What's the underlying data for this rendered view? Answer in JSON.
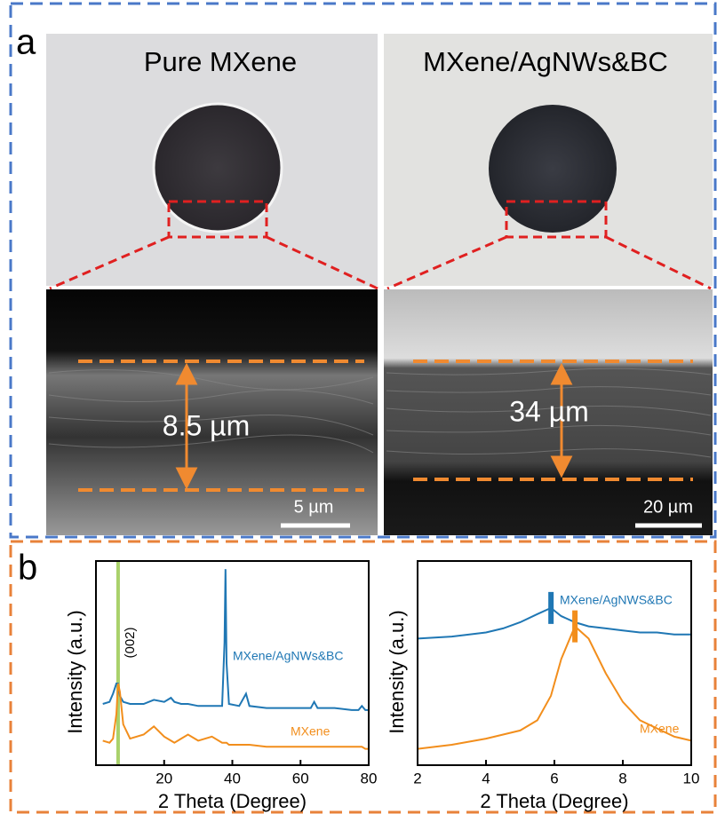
{
  "panel_a": {
    "label": "a",
    "left_title": "Pure MXene",
    "right_title": "MXene/AgNWs&BC",
    "left_thickness": "8.5 µm",
    "right_thickness": "34 µm",
    "left_scale": "5 µm",
    "right_scale": "20 µm"
  },
  "panel_b": {
    "label": "b"
  },
  "chart_data": [
    {
      "type": "line",
      "xlabel": "2 Theta (Degree)",
      "ylabel": "Intensity (a.u.)",
      "annotation": "(002)",
      "highlight_x": 6.5,
      "highlight_color": "#a9d16b",
      "xlim": [
        0,
        80
      ],
      "xticks": [
        20,
        40,
        60,
        80
      ],
      "ylim": [
        0,
        100
      ],
      "x": [
        2,
        4,
        5,
        6,
        6.5,
        7,
        8,
        10,
        14,
        17,
        20,
        22,
        23,
        25,
        27,
        30,
        34,
        37,
        37.7,
        38,
        38.3,
        39,
        42,
        44,
        45,
        50,
        55,
        60,
        63,
        64,
        65,
        70,
        75,
        77,
        78,
        79,
        80
      ],
      "series": [
        {
          "name": "MXene/AgNWs&BC",
          "color": "#1f77b4",
          "values": [
            30,
            31,
            35,
            40,
            40,
            34,
            31,
            30,
            30,
            32,
            31,
            33,
            31,
            30,
            30,
            29,
            29,
            29,
            60,
            96,
            50,
            30,
            29,
            35,
            29,
            28,
            28,
            28,
            28,
            31,
            28,
            28,
            27,
            27,
            29,
            27,
            27
          ]
        },
        {
          "name": "MXene",
          "color": "#f28e1c",
          "values": [
            12,
            11,
            13,
            25,
            40,
            36,
            20,
            13,
            15,
            19,
            14,
            12,
            11,
            13,
            15,
            12,
            14,
            11,
            11,
            11,
            11,
            10,
            10,
            10,
            10,
            9,
            9,
            9,
            9,
            9,
            9,
            9,
            9,
            9,
            9,
            8,
            8
          ]
        }
      ]
    },
    {
      "type": "line",
      "xlabel": "2 Theta (Degree)",
      "ylabel": "Intensity (a.u.)",
      "xlim": [
        2,
        10
      ],
      "xticks": [
        2,
        4,
        6,
        8,
        10
      ],
      "ylim": [
        0,
        100
      ],
      "x": [
        2,
        3,
        4,
        4.5,
        5,
        5.5,
        5.9,
        6.2,
        6.6,
        7,
        7.5,
        8,
        8.5,
        9,
        9.5,
        10
      ],
      "series": [
        {
          "name": "MXene/AgNWS&BC",
          "color": "#1f77b4",
          "peak_x": 5.9,
          "values": [
            62,
            63,
            65,
            67,
            70,
            74,
            77,
            73,
            70,
            68,
            67,
            66,
            65,
            65,
            64,
            64
          ]
        },
        {
          "name": "MXene",
          "color": "#f28e1c",
          "peak_x": 6.6,
          "values": [
            8,
            10,
            13,
            15,
            17,
            22,
            34,
            52,
            68,
            62,
            45,
            31,
            22,
            18,
            14,
            12
          ]
        }
      ]
    }
  ]
}
